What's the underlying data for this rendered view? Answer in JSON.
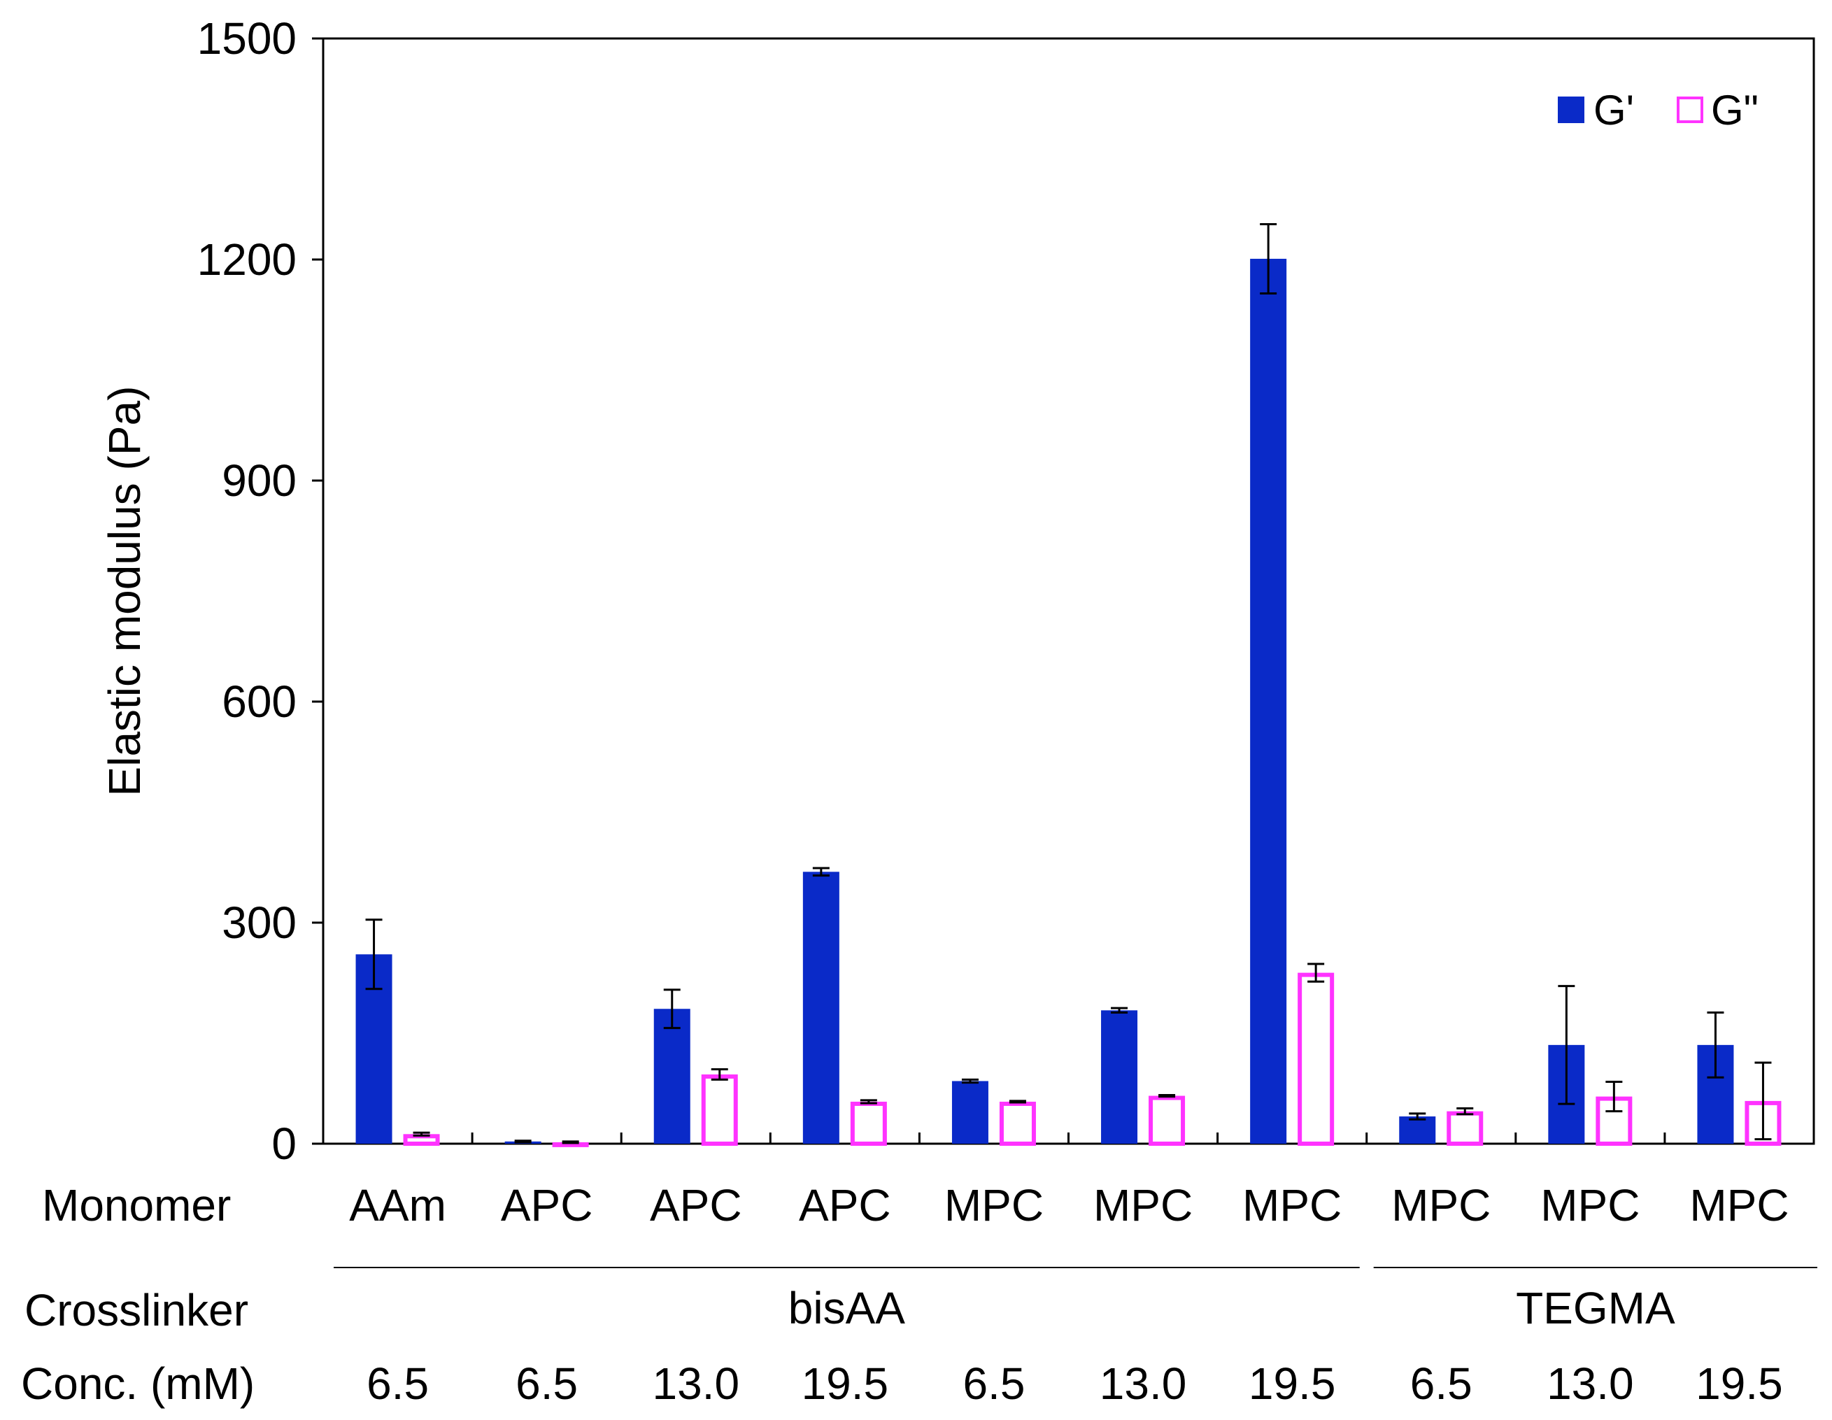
{
  "chart_data": {
    "type": "bar",
    "ylabel": "Elastic modulus (Pa)",
    "ylim": [
      0,
      1500
    ],
    "yticks": [
      "0",
      "300",
      "600",
      "900",
      "1200",
      "1500"
    ],
    "grid": false,
    "legend_position": "top-right",
    "row_labels": {
      "monomer": "Monomer",
      "crosslinker": "Crosslinker",
      "conc": "Conc. (mM)"
    },
    "categories": [
      {
        "monomer": "AAm",
        "conc": "6.5"
      },
      {
        "monomer": "APC",
        "conc": "6.5"
      },
      {
        "monomer": "APC",
        "conc": "13.0"
      },
      {
        "monomer": "APC",
        "conc": "19.5"
      },
      {
        "monomer": "MPC",
        "conc": "6.5"
      },
      {
        "monomer": "MPC",
        "conc": "13.0"
      },
      {
        "monomer": "MPC",
        "conc": "19.5"
      },
      {
        "monomer": "MPC",
        "conc": "6.5"
      },
      {
        "monomer": "MPC",
        "conc": "13.0"
      },
      {
        "monomer": "MPC",
        "conc": "19.5"
      }
    ],
    "crosslinker_groups": [
      {
        "label": "bisAA",
        "first": 0,
        "last": 6
      },
      {
        "label": "TEGMA",
        "first": 7,
        "last": 9
      }
    ],
    "series": [
      {
        "name": "G'",
        "style": "filled",
        "color": "#0A2AC8",
        "values": [
          257,
          3,
          183,
          369,
          85,
          181,
          1201,
          37,
          134,
          134
        ],
        "errors": [
          47,
          1,
          26,
          5,
          2,
          3,
          47,
          4,
          80,
          44
        ]
      },
      {
        "name": "G\"",
        "style": "outline",
        "color": "#FF33FF",
        "values": [
          13,
          2,
          94,
          57,
          57,
          65,
          232,
          44,
          64,
          58
        ],
        "errors": [
          2,
          1,
          7,
          2,
          1,
          1,
          12,
          4,
          20,
          52
        ]
      }
    ]
  }
}
